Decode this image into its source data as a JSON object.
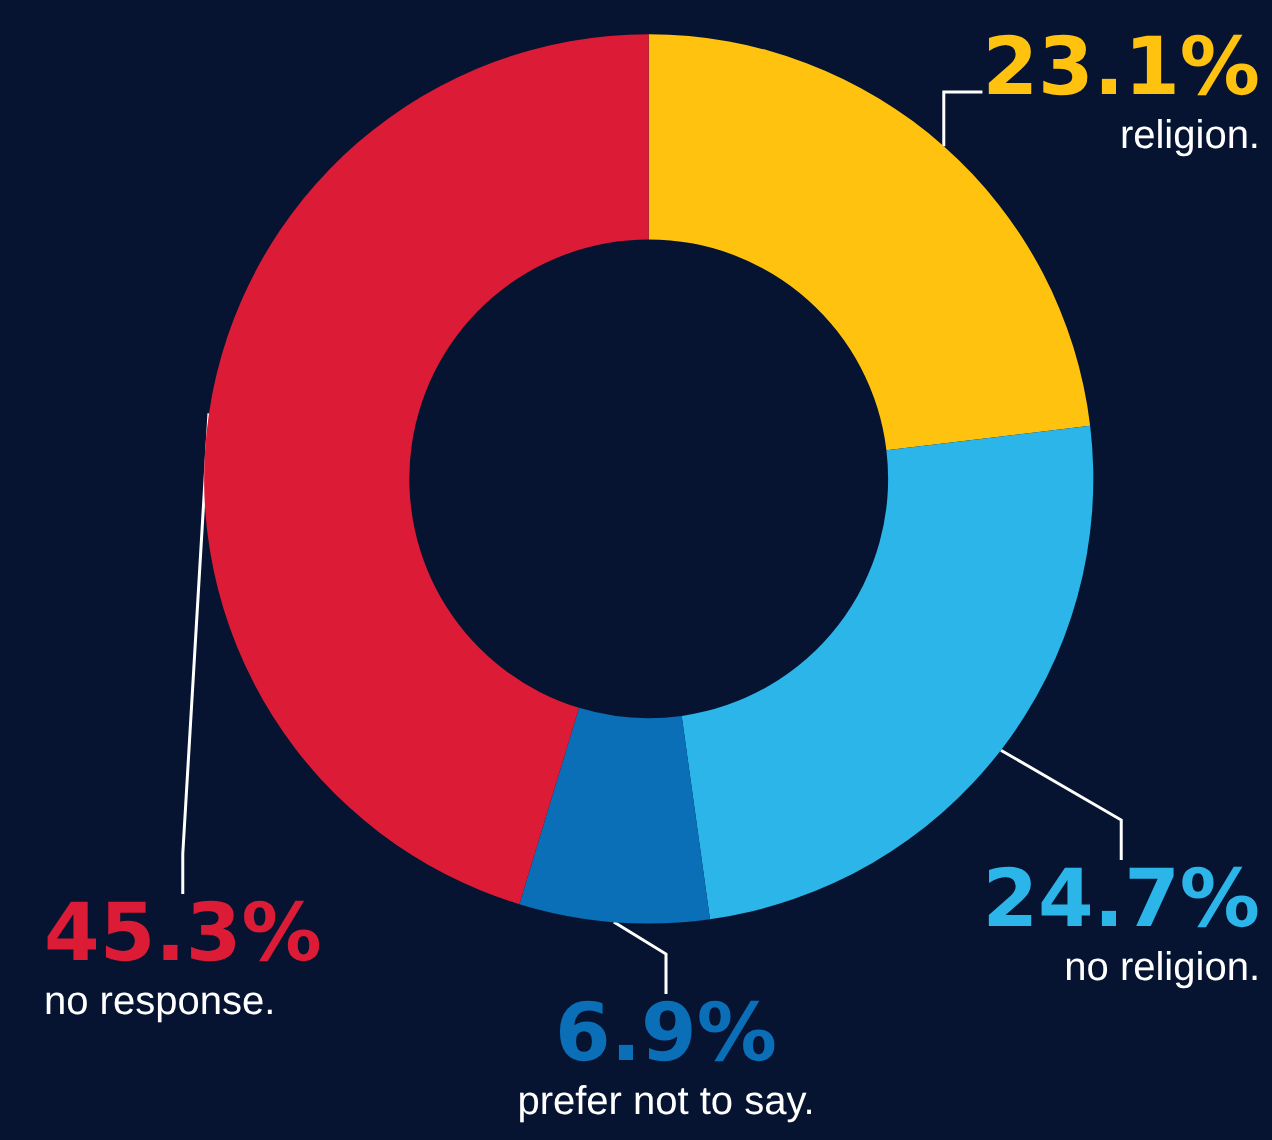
{
  "chart_data": {
    "type": "donut",
    "categories": [
      "religion.",
      "no religion.",
      "prefer not to say.",
      "no response."
    ],
    "values": [
      23.1,
      24.7,
      6.9,
      45.3
    ],
    "colors": [
      "#ffc20e",
      "#2bb5e9",
      "#0a6fb7",
      "#dc1c36"
    ],
    "value_labels": [
      "23.1%",
      "24.7%",
      "6.9%",
      "45.3%"
    ]
  }
}
